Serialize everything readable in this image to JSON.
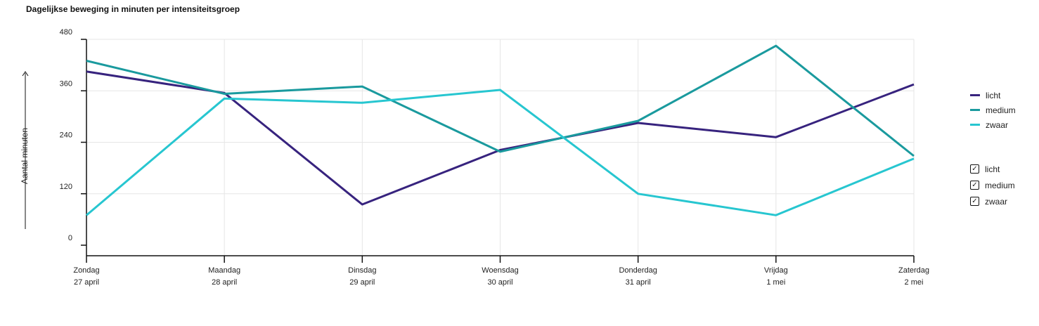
{
  "chart_data": {
    "type": "line",
    "title": "Dagelijkse beweging in minuten per intensiteitsgroep",
    "ylabel": "Aantal minuten",
    "xlabel": "",
    "categories": [
      [
        "Zondag",
        "27 april"
      ],
      [
        "Maandag",
        "28 april"
      ],
      [
        "Dinsdag",
        "29 april"
      ],
      [
        "Woensdag",
        "30 april"
      ],
      [
        "Donderdag",
        "31 april"
      ],
      [
        "Vrijdag",
        "1 mei"
      ],
      [
        "Zaterdag",
        "2 mei"
      ]
    ],
    "yticks": [
      "0",
      "120",
      "240",
      "360",
      "480"
    ],
    "ylim": [
      0,
      480
    ],
    "grid": true,
    "legend_position": "right",
    "series": [
      {
        "name": "licht",
        "color": "#37237e",
        "values": [
          405,
          355,
          95,
          222,
          285,
          252,
          375
        ]
      },
      {
        "name": "medium",
        "color": "#1a9a9e",
        "values": [
          430,
          353,
          370,
          218,
          290,
          465,
          208
        ]
      },
      {
        "name": "zwaar",
        "color": "#27c6d0",
        "values": [
          70,
          342,
          332,
          362,
          120,
          70,
          202
        ]
      }
    ]
  },
  "toggles": [
    {
      "label": "licht",
      "checked": true
    },
    {
      "label": "medium",
      "checked": true
    },
    {
      "label": "zwaar",
      "checked": true
    }
  ],
  "checkmark": "✓"
}
